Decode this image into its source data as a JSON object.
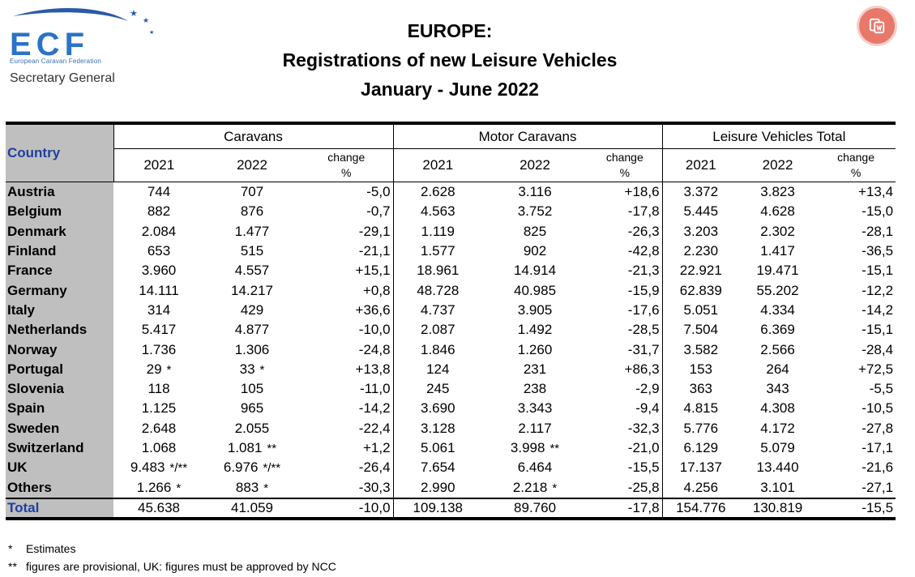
{
  "logo": {
    "letters": "ECF",
    "org_name": "European Caravan Federation",
    "subtitle": "Secretary General"
  },
  "title": {
    "line1": "EUROPE:",
    "line2": "Registrations of new Leisure Vehicles",
    "line3": "January - June 2022"
  },
  "floating_button_icon": "translate-icon",
  "table": {
    "country_header": "Country",
    "groups": [
      "Caravans",
      "Motor Caravans",
      "Leisure Vehicles Total"
    ],
    "year_a": "2021",
    "year_b": "2022",
    "change_label_1": "change",
    "change_label_2": "%",
    "rows": [
      {
        "country": "Austria",
        "c21": "744",
        "c22": "707",
        "cc": "-5,0",
        "m21": "2.628",
        "m22": "3.116",
        "mc": "+18,6",
        "t21": "3.372",
        "t22": "3.823",
        "tc": "+13,4"
      },
      {
        "country": "Belgium",
        "c21": "882",
        "c22": "876",
        "cc": "-0,7",
        "m21": "4.563",
        "m22": "3.752",
        "mc": "-17,8",
        "t21": "5.445",
        "t22": "4.628",
        "tc": "-15,0"
      },
      {
        "country": "Denmark",
        "c21": "2.084",
        "c22": "1.477",
        "cc": "-29,1",
        "m21": "1.119",
        "m22": "825",
        "mc": "-26,3",
        "t21": "3.203",
        "t22": "2.302",
        "tc": "-28,1"
      },
      {
        "country": "Finland",
        "c21": "653",
        "c22": "515",
        "cc": "-21,1",
        "m21": "1.577",
        "m22": "902",
        "mc": "-42,8",
        "t21": "2.230",
        "t22": "1.417",
        "tc": "-36,5"
      },
      {
        "country": "France",
        "c21": "3.960",
        "c22": "4.557",
        "cc": "+15,1",
        "m21": "18.961",
        "m22": "14.914",
        "mc": "-21,3",
        "t21": "22.921",
        "t22": "19.471",
        "tc": "-15,1"
      },
      {
        "country": "Germany",
        "c21": "14.111",
        "c22": "14.217",
        "cc": "+0,8",
        "m21": "48.728",
        "m22": "40.985",
        "mc": "-15,9",
        "t21": "62.839",
        "t22": "55.202",
        "tc": "-12,2"
      },
      {
        "country": "Italy",
        "c21": "314",
        "c22": "429",
        "cc": "+36,6",
        "m21": "4.737",
        "m22": "3.905",
        "mc": "-17,6",
        "t21": "5.051",
        "t22": "4.334",
        "tc": "-14,2"
      },
      {
        "country": "Netherlands",
        "c21": "5.417",
        "c22": "4.877",
        "cc": "-10,0",
        "m21": "2.087",
        "m22": "1.492",
        "mc": "-28,5",
        "t21": "7.504",
        "t22": "6.369",
        "tc": "-15,1"
      },
      {
        "country": "Norway",
        "c21": "1.736",
        "c22": "1.306",
        "cc": "-24,8",
        "m21": "1.846",
        "m22": "1.260",
        "mc": "-31,7",
        "t21": "3.582",
        "t22": "2.566",
        "tc": "-28,4"
      },
      {
        "country": "Portugal",
        "c21": "29",
        "c21n": "*",
        "c22": "33",
        "c22n": "*",
        "cc": "+13,8",
        "m21": "124",
        "m22": "231",
        "mc": "+86,3",
        "t21": "153",
        "t22": "264",
        "tc": "+72,5"
      },
      {
        "country": "Slovenia",
        "c21": "118",
        "c22": "105",
        "cc": "-11,0",
        "m21": "245",
        "m22": "238",
        "mc": "-2,9",
        "t21": "363",
        "t22": "343",
        "tc": "-5,5"
      },
      {
        "country": "Spain",
        "c21": "1.125",
        "c22": "965",
        "cc": "-14,2",
        "m21": "3.690",
        "m22": "3.343",
        "mc": "-9,4",
        "t21": "4.815",
        "t22": "4.308",
        "tc": "-10,5"
      },
      {
        "country": "Sweden",
        "c21": "2.648",
        "c22": "2.055",
        "cc": "-22,4",
        "m21": "3.128",
        "m22": "2.117",
        "mc": "-32,3",
        "t21": "5.776",
        "t22": "4.172",
        "tc": "-27,8"
      },
      {
        "country": "Switzerland",
        "c21": "1.068",
        "c22": "1.081",
        "c22n": "**",
        "cc": "+1,2",
        "m21": "5.061",
        "m22": "3.998",
        "m22n": "**",
        "mc": "-21,0",
        "t21": "6.129",
        "t22": "5.079",
        "tc": "-17,1"
      },
      {
        "country": "UK",
        "c21": "9.483",
        "c21n": "*/**",
        "c22": "6.976",
        "c22n": "*/**",
        "cc": "-26,4",
        "m21": "7.654",
        "m22": "6.464",
        "mc": "-15,5",
        "t21": "17.137",
        "t22": "13.440",
        "tc": "-21,6"
      },
      {
        "country": "Others",
        "c21": "1.266",
        "c21n": "*",
        "c22": "883",
        "c22n": "*",
        "cc": "-30,3",
        "m21": "2.990",
        "m22": "2.218",
        "m22n": "*",
        "mc": "-25,8",
        "t21": "4.256",
        "t22": "3.101",
        "tc": "-27,1"
      }
    ],
    "total": {
      "country": "Total",
      "c21": "45.638",
      "c22": "41.059",
      "cc": "-10,0",
      "m21": "109.138",
      "m22": "89.760",
      "mc": "-17,8",
      "t21": "154.776",
      "t22": "130.819",
      "tc": "-15,5"
    }
  },
  "footnotes": [
    {
      "mark": "*",
      "text": "Estimates"
    },
    {
      "mark": "**",
      "text": "figures are provisional, UK: figures must be approved by NCC"
    }
  ]
}
